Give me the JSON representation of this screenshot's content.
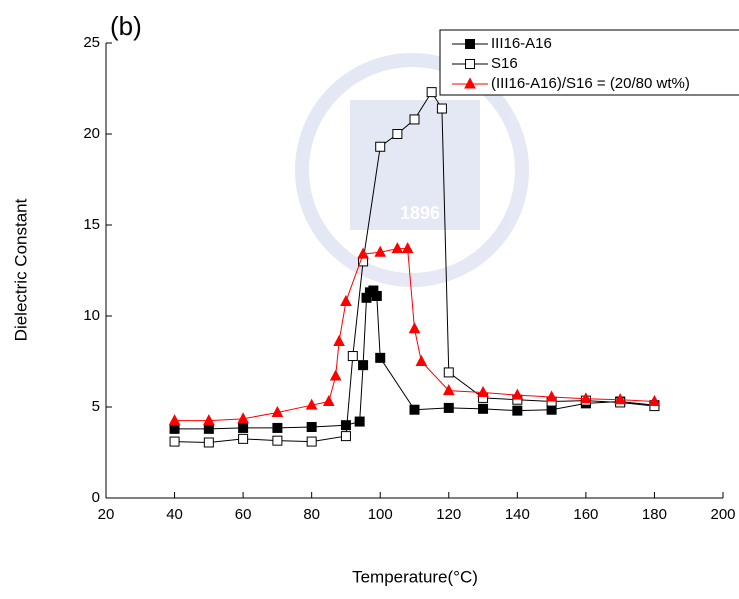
{
  "chart_data": {
    "type": "line",
    "panel_label": "(b)",
    "watermark": "1896",
    "xlabel": "Temperature(°C)",
    "ylabel": "Dielectric Constant",
    "xlim": [
      20,
      200
    ],
    "ylim": [
      0,
      25
    ],
    "xticks": [
      20,
      40,
      60,
      80,
      100,
      120,
      140,
      160,
      180,
      200
    ],
    "yticks": [
      0,
      5,
      10,
      15,
      20,
      25
    ],
    "legend": "top-right",
    "series": [
      {
        "name": "III16-A16",
        "color": "#000000",
        "marker": "filled-square",
        "x": [
          40,
          50,
          60,
          70,
          80,
          90,
          94,
          95,
          96,
          97,
          98,
          99,
          100,
          110,
          120,
          130,
          140,
          150,
          160,
          170,
          180
        ],
        "values": [
          3.8,
          3.8,
          3.85,
          3.85,
          3.9,
          4.0,
          4.2,
          7.3,
          11.0,
          11.3,
          11.4,
          11.1,
          7.7,
          4.85,
          4.95,
          4.9,
          4.8,
          4.85,
          5.2,
          5.3,
          5.1
        ]
      },
      {
        "name": "S16",
        "color": "#000000",
        "marker": "open-square",
        "x": [
          40,
          50,
          60,
          70,
          80,
          90,
          92,
          95,
          100,
          105,
          110,
          115,
          118,
          120,
          130,
          140,
          150,
          160,
          170,
          180
        ],
        "values": [
          3.1,
          3.05,
          3.25,
          3.15,
          3.1,
          3.4,
          7.8,
          13.0,
          19.3,
          20.0,
          20.8,
          22.3,
          21.4,
          6.9,
          5.5,
          5.4,
          5.3,
          5.35,
          5.25,
          5.05
        ]
      },
      {
        "name": "(III16-A16)/S16 = (20/80 wt%)",
        "color": "#ff0000",
        "marker": "triangle",
        "x": [
          40,
          50,
          60,
          70,
          80,
          85,
          87,
          88,
          90,
          95,
          100,
          105,
          108,
          110,
          112,
          120,
          130,
          140,
          150,
          160,
          170,
          180
        ],
        "values": [
          4.25,
          4.25,
          4.35,
          4.7,
          5.1,
          5.3,
          6.7,
          8.6,
          10.8,
          13.4,
          13.5,
          13.7,
          13.7,
          9.3,
          7.5,
          5.9,
          5.8,
          5.65,
          5.55,
          5.45,
          5.4,
          5.3
        ]
      }
    ]
  }
}
